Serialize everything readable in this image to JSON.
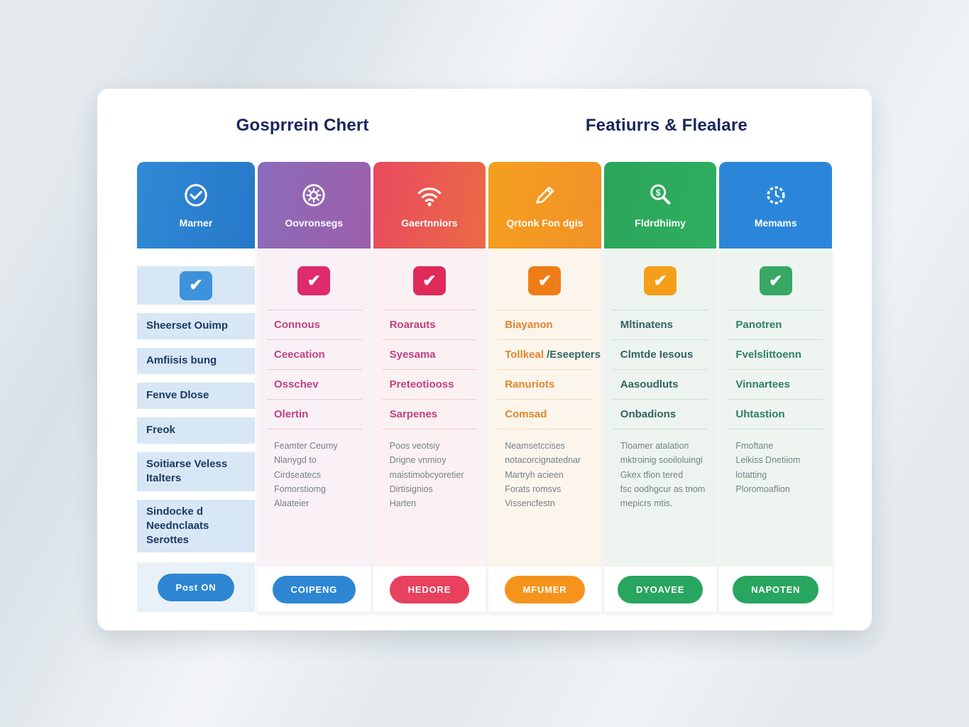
{
  "titles": {
    "left": "Gosprrein Chert",
    "right": "Featiurrs & Flealare"
  },
  "colors": {
    "title_text": "#17265d",
    "page_background": "#e4eaee",
    "card_background": "#ffffff",
    "sidebar_row_background": "#d7e7f5",
    "sidebar_text": "#1d3a63",
    "detail_text": "#75808c"
  },
  "sidebar": {
    "header": {
      "label": "Marner",
      "icon": "check-circle-icon",
      "color1": "#3089d6",
      "color2": "#2679c8"
    },
    "check_color": "#3d92dc",
    "check_glyph": "✔",
    "rows": [
      "Sheerset Ouimp",
      "Amfiisis bung",
      "Fenve Dlose",
      "Freok",
      "Soitiarse Veless Italters",
      "Sindocke d Neednclaats Serottes"
    ],
    "button_label": "Post ON",
    "button_color": "#2e86d3"
  },
  "columns": [
    {
      "label": "Oovronsegs",
      "icon": "gear-icon",
      "hdr1": "#8a6cbb",
      "hdr2": "#9d5fa9",
      "check": "#df2a6c",
      "item": "#c2407e",
      "body": "#f9f1f6",
      "div": "#e5cbd9",
      "btn": "#2e86d3",
      "items": [
        "Connous",
        "Ceecation",
        "Osschev",
        "Olertin"
      ],
      "details": [
        "Feamter Ceumy",
        "Nlanygd to",
        "Cirdseatecs",
        "Fomorstiomg",
        "Alaateier"
      ],
      "button_label": "COIPENG"
    },
    {
      "label": "Gaertnniors",
      "icon": "wifi-icon",
      "hdr1": "#e84a5f",
      "hdr2": "#ec6a45",
      "check": "#e02a5c",
      "item": "#c2407e",
      "body": "#fcf1f2",
      "div": "#f0ccd0",
      "btn": "#e8415e",
      "items": [
        "Roarauts",
        "Syesama",
        "Preteotiooss",
        "Sarpenes"
      ],
      "details": [
        "Poos veotsiy",
        "Drigne vnmioy",
        "maistimobcyoretier",
        "Dirtisignios",
        "Harten"
      ],
      "button_label": "HEDORE"
    },
    {
      "label": "Qrtonk Fon dgis",
      "icon": "pencil-icon",
      "hdr1": "#f4a01f",
      "hdr2": "#f29127",
      "check": "#ef7d17",
      "item": "#e0862e",
      "body": "#fcf5eb",
      "div": "#eedbbc",
      "btn": "#f5941d",
      "items": [
        "Biayanon",
        {
          "text": "Tollkeal",
          "suffix": " /Eseepterss"
        },
        "Ranuriots",
        "Comsad"
      ],
      "details": [
        "Neamsetccises",
        "notacorcignatednar",
        "Martryh acieen",
        "Forats romsvs",
        "Vissencfestn"
      ],
      "button_label": "MFUMER"
    },
    {
      "label": "Fldrdhiimy",
      "icon": "search-dollar-icon",
      "hdr1": "#2aa65a",
      "hdr2": "#2fae5f",
      "check": "#f59e1a",
      "item": "#33635f",
      "body": "#edf4ef",
      "div": "#cfe0d6",
      "btn": "#28a55f",
      "items": [
        "Mltinatens",
        "Clmtde Iesous",
        "Aasoudluts",
        "Onbadions"
      ],
      "details": [
        "Tloamer atalation",
        "mktroinig sooiloluingi",
        "Gkex tfion tered",
        "fsc oodhgcur as tnom",
        "mepicrs mtis."
      ],
      "button_label": "DYOAVEE"
    },
    {
      "label": "Memams",
      "icon": "gear-clock-icon",
      "hdr1": "#2b86d9",
      "hdr2": "#2b86d9",
      "check": "#38a864",
      "item": "#2f7d68",
      "body": "#eef5f1",
      "div": "#cfe0d8",
      "btn": "#28a55f",
      "items": [
        "Panotren",
        "Fvelslittoenn",
        "Vinnartees",
        "Uhtastion"
      ],
      "details": [
        "Fmoftane",
        "Leikiss Dnetiiom",
        "lotatting",
        "Ploromoaflion"
      ],
      "button_label": "NAPOTEN"
    }
  ]
}
